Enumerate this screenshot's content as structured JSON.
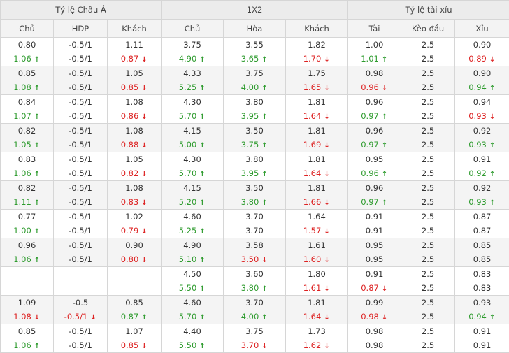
{
  "groups": [
    "Tỷ lệ Châu Á",
    "1X2",
    "Tỷ lệ tài xỉu"
  ],
  "columns": [
    "Chủ",
    "HDP",
    "Khách",
    "Chủ",
    "Hòa",
    "Khách",
    "Tài",
    "Kèo đầu",
    "Xỉu"
  ],
  "rows": [
    [
      {
        "o": "0.80",
        "c": "1.06",
        "d": "up"
      },
      {
        "o": "-0.5/1",
        "c": "-0.5/1",
        "d": ""
      },
      {
        "o": "1.11",
        "c": "0.87",
        "d": "down"
      },
      {
        "o": "3.75",
        "c": "4.90",
        "d": "up"
      },
      {
        "o": "3.55",
        "c": "3.65",
        "d": "up"
      },
      {
        "o": "1.82",
        "c": "1.70",
        "d": "down"
      },
      {
        "o": "1.00",
        "c": "1.01",
        "d": "up"
      },
      {
        "o": "2.5",
        "c": "2.5",
        "d": ""
      },
      {
        "o": "0.90",
        "c": "0.89",
        "d": "down"
      }
    ],
    [
      {
        "o": "0.85",
        "c": "1.08",
        "d": "up"
      },
      {
        "o": "-0.5/1",
        "c": "-0.5/1",
        "d": ""
      },
      {
        "o": "1.05",
        "c": "0.85",
        "d": "down"
      },
      {
        "o": "4.33",
        "c": "5.25",
        "d": "up"
      },
      {
        "o": "3.75",
        "c": "4.00",
        "d": "up"
      },
      {
        "o": "1.75",
        "c": "1.65",
        "d": "down"
      },
      {
        "o": "0.98",
        "c": "0.96",
        "d": "down"
      },
      {
        "o": "2.5",
        "c": "2.5",
        "d": ""
      },
      {
        "o": "0.90",
        "c": "0.94",
        "d": "up"
      }
    ],
    [
      {
        "o": "0.84",
        "c": "1.07",
        "d": "up"
      },
      {
        "o": "-0.5/1",
        "c": "-0.5/1",
        "d": ""
      },
      {
        "o": "1.08",
        "c": "0.86",
        "d": "down"
      },
      {
        "o": "4.30",
        "c": "5.70",
        "d": "up"
      },
      {
        "o": "3.80",
        "c": "3.95",
        "d": "up"
      },
      {
        "o": "1.81",
        "c": "1.64",
        "d": "down"
      },
      {
        "o": "0.96",
        "c": "0.97",
        "d": "up"
      },
      {
        "o": "2.5",
        "c": "2.5",
        "d": ""
      },
      {
        "o": "0.94",
        "c": "0.93",
        "d": "down"
      }
    ],
    [
      {
        "o": "0.82",
        "c": "1.05",
        "d": "up"
      },
      {
        "o": "-0.5/1",
        "c": "-0.5/1",
        "d": ""
      },
      {
        "o": "1.08",
        "c": "0.88",
        "d": "down"
      },
      {
        "o": "4.15",
        "c": "5.00",
        "d": "up"
      },
      {
        "o": "3.50",
        "c": "3.75",
        "d": "up"
      },
      {
        "o": "1.81",
        "c": "1.69",
        "d": "down"
      },
      {
        "o": "0.96",
        "c": "0.97",
        "d": "up"
      },
      {
        "o": "2.5",
        "c": "2.5",
        "d": ""
      },
      {
        "o": "0.92",
        "c": "0.93",
        "d": "up"
      }
    ],
    [
      {
        "o": "0.83",
        "c": "1.06",
        "d": "up"
      },
      {
        "o": "-0.5/1",
        "c": "-0.5/1",
        "d": ""
      },
      {
        "o": "1.05",
        "c": "0.82",
        "d": "down"
      },
      {
        "o": "4.30",
        "c": "5.70",
        "d": "up"
      },
      {
        "o": "3.80",
        "c": "3.95",
        "d": "up"
      },
      {
        "o": "1.81",
        "c": "1.64",
        "d": "down"
      },
      {
        "o": "0.95",
        "c": "0.96",
        "d": "up"
      },
      {
        "o": "2.5",
        "c": "2.5",
        "d": ""
      },
      {
        "o": "0.91",
        "c": "0.92",
        "d": "up"
      }
    ],
    [
      {
        "o": "0.82",
        "c": "1.11",
        "d": "up"
      },
      {
        "o": "-0.5/1",
        "c": "-0.5/1",
        "d": ""
      },
      {
        "o": "1.08",
        "c": "0.83",
        "d": "down"
      },
      {
        "o": "4.15",
        "c": "5.20",
        "d": "up"
      },
      {
        "o": "3.50",
        "c": "3.80",
        "d": "up"
      },
      {
        "o": "1.81",
        "c": "1.66",
        "d": "down"
      },
      {
        "o": "0.96",
        "c": "0.97",
        "d": "up"
      },
      {
        "o": "2.5",
        "c": "2.5",
        "d": ""
      },
      {
        "o": "0.92",
        "c": "0.93",
        "d": "up"
      }
    ],
    [
      {
        "o": "0.77",
        "c": "1.00",
        "d": "up"
      },
      {
        "o": "-0.5/1",
        "c": "-0.5/1",
        "d": ""
      },
      {
        "o": "1.02",
        "c": "0.79",
        "d": "down"
      },
      {
        "o": "4.60",
        "c": "5.25",
        "d": "up"
      },
      {
        "o": "3.70",
        "c": "3.70",
        "d": ""
      },
      {
        "o": "1.64",
        "c": "1.57",
        "d": "down"
      },
      {
        "o": "0.91",
        "c": "0.91",
        "d": ""
      },
      {
        "o": "2.5",
        "c": "2.5",
        "d": ""
      },
      {
        "o": "0.87",
        "c": "0.87",
        "d": ""
      }
    ],
    [
      {
        "o": "0.96",
        "c": "1.06",
        "d": "up"
      },
      {
        "o": "-0.5/1",
        "c": "-0.5/1",
        "d": ""
      },
      {
        "o": "0.90",
        "c": "0.80",
        "d": "down"
      },
      {
        "o": "4.90",
        "c": "5.10",
        "d": "up"
      },
      {
        "o": "3.58",
        "c": "3.50",
        "d": "down"
      },
      {
        "o": "1.61",
        "c": "1.60",
        "d": "down"
      },
      {
        "o": "0.95",
        "c": "0.95",
        "d": ""
      },
      {
        "o": "2.5",
        "c": "2.5",
        "d": ""
      },
      {
        "o": "0.85",
        "c": "0.85",
        "d": ""
      }
    ],
    [
      {
        "o": "",
        "c": "",
        "d": ""
      },
      {
        "o": "",
        "c": "",
        "d": ""
      },
      {
        "o": "",
        "c": "",
        "d": ""
      },
      {
        "o": "4.50",
        "c": "5.50",
        "d": "up"
      },
      {
        "o": "3.60",
        "c": "3.80",
        "d": "up"
      },
      {
        "o": "1.80",
        "c": "1.61",
        "d": "down"
      },
      {
        "o": "0.91",
        "c": "0.87",
        "d": "down"
      },
      {
        "o": "2.5",
        "c": "2.5",
        "d": ""
      },
      {
        "o": "0.83",
        "c": "0.83",
        "d": ""
      }
    ],
    [
      {
        "o": "1.09",
        "c": "1.08",
        "d": "down"
      },
      {
        "o": "-0.5",
        "c": "-0.5/1",
        "d": "down"
      },
      {
        "o": "0.85",
        "c": "0.87",
        "d": "up"
      },
      {
        "o": "4.60",
        "c": "5.70",
        "d": "up"
      },
      {
        "o": "3.70",
        "c": "4.00",
        "d": "up"
      },
      {
        "o": "1.81",
        "c": "1.64",
        "d": "down"
      },
      {
        "o": "0.99",
        "c": "0.98",
        "d": "down"
      },
      {
        "o": "2.5",
        "c": "2.5",
        "d": ""
      },
      {
        "o": "0.93",
        "c": "0.94",
        "d": "up"
      }
    ],
    [
      {
        "o": "0.85",
        "c": "1.06",
        "d": "up"
      },
      {
        "o": "-0.5/1",
        "c": "-0.5/1",
        "d": ""
      },
      {
        "o": "1.07",
        "c": "0.85",
        "d": "down"
      },
      {
        "o": "4.40",
        "c": "5.50",
        "d": "up"
      },
      {
        "o": "3.75",
        "c": "3.70",
        "d": "down"
      },
      {
        "o": "1.73",
        "c": "1.62",
        "d": "down"
      },
      {
        "o": "0.98",
        "c": "0.98",
        "d": ""
      },
      {
        "o": "2.5",
        "c": "2.5",
        "d": ""
      },
      {
        "o": "0.91",
        "c": "0.91",
        "d": ""
      }
    ]
  ],
  "colors": {
    "up": "#2e9b2e",
    "down": "#dd2222",
    "header_bg": "#ececec",
    "row_alt_bg": "#f4f4f4",
    "border": "#d6d6d6"
  },
  "icons": {
    "up": "arrow-up-icon",
    "down": "arrow-down-icon"
  }
}
